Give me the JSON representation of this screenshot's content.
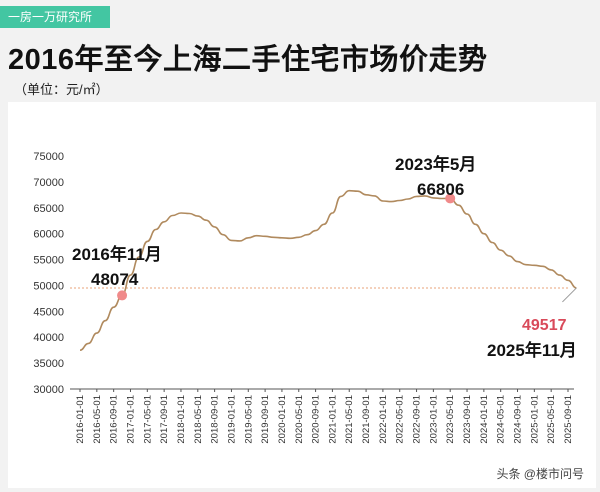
{
  "brand_tag": "一房一万研究所",
  "title": "2016年至今上海二手住宅市场价走势",
  "unit_label": "（单位：元/㎡）",
  "watermark": "头条 @楼市问号",
  "colors": {
    "line": "#b08a5e",
    "marker": "#f08a8a",
    "reference_line": "#e8a37a",
    "highlight_value": "#d94a5a",
    "tag_bg": "#43c6a2"
  },
  "chart_data": {
    "type": "line",
    "ylim": [
      30000,
      75000
    ],
    "y_ticks": [
      30000,
      35000,
      40000,
      45000,
      50000,
      55000,
      60000,
      65000,
      70000,
      75000
    ],
    "x_tick_labels": [
      "2016-01-01",
      "2016-05-01",
      "2016-09-01",
      "2017-01-01",
      "2017-05-01",
      "2017-09-01",
      "2018-01-01",
      "2018-05-01",
      "2018-09-01",
      "2019-01-01",
      "2019-05-01",
      "2019-09-01",
      "2020-01-01",
      "2020-05-01",
      "2020-09-01",
      "2021-01-01",
      "2021-05-01",
      "2021-09-01",
      "2022-01-01",
      "2022-05-01",
      "2022-09-01",
      "2023-01-01",
      "2023-05-01",
      "2023-09-01",
      "2024-01-01",
      "2024-05-01",
      "2024-09-01",
      "2025-01-01",
      "2025-05-01",
      "2025-09-01"
    ],
    "series": [
      {
        "x": [
          "2016-01",
          "2016-03",
          "2016-05",
          "2016-07",
          "2016-09",
          "2016-11",
          "2017-01",
          "2017-03",
          "2017-05",
          "2017-07",
          "2017-09",
          "2017-11",
          "2018-01",
          "2018-03",
          "2018-05",
          "2018-07",
          "2018-09",
          "2018-11",
          "2019-01",
          "2019-03",
          "2019-05",
          "2019-07",
          "2019-09",
          "2019-11",
          "2020-01",
          "2020-03",
          "2020-05",
          "2020-07",
          "2020-09",
          "2020-11",
          "2021-01",
          "2021-03",
          "2021-05",
          "2021-07",
          "2021-09",
          "2021-11",
          "2022-01",
          "2022-03",
          "2022-05",
          "2022-07",
          "2022-09",
          "2022-11",
          "2023-01",
          "2023-03",
          "2023-05",
          "2023-07",
          "2023-09",
          "2023-11",
          "2024-01",
          "2024-03",
          "2024-05",
          "2024-07",
          "2024-09",
          "2024-11",
          "2025-01",
          "2025-03",
          "2025-05",
          "2025-07",
          "2025-09",
          "2025-11"
        ],
        "values": [
          37500,
          38800,
          40800,
          43200,
          45800,
          48074,
          52000,
          55500,
          58500,
          60800,
          62300,
          63500,
          64000,
          63900,
          63400,
          62600,
          61300,
          59800,
          58700,
          58600,
          59200,
          59600,
          59500,
          59300,
          59200,
          59100,
          59300,
          59800,
          60600,
          61800,
          64000,
          67200,
          68300,
          68200,
          67500,
          67300,
          66300,
          66200,
          66400,
          66700,
          67200,
          67300,
          66900,
          66800,
          66806,
          65500,
          63800,
          61800,
          60000,
          58300,
          56800,
          55700,
          54600,
          54000,
          53900,
          53700,
          53000,
          52000,
          51000,
          49517
        ]
      }
    ],
    "reference_line_value": 49517,
    "annotations": [
      {
        "x": "2016-11",
        "y": 48074,
        "date_label": "2016年11月",
        "value_label": "48074"
      },
      {
        "x": "2023-05",
        "y": 66806,
        "date_label": "2023年5月",
        "value_label": "66806"
      },
      {
        "x": "2025-11",
        "y": 49517,
        "date_label": "2025年11月",
        "value_label": "49517"
      }
    ]
  }
}
